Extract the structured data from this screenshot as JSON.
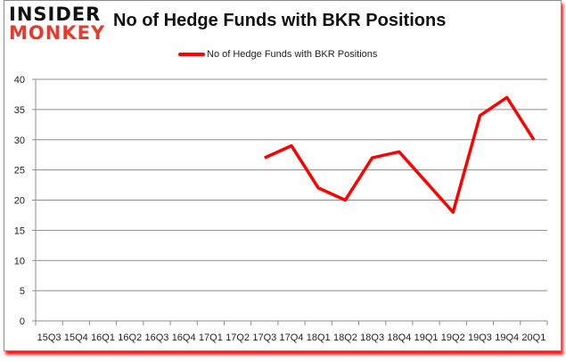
{
  "branding": {
    "line1": "INSIDER",
    "line2": "MONKEY"
  },
  "chart_data": {
    "type": "line",
    "title": "No of Hedge Funds with BKR Positions",
    "xlabel": "",
    "ylabel": "",
    "ylim": [
      0,
      40
    ],
    "yticks": [
      0,
      5,
      10,
      15,
      20,
      25,
      30,
      35,
      40
    ],
    "grid": true,
    "legend_position": "top",
    "categories": [
      "15Q3",
      "15Q4",
      "16Q1",
      "16Q2",
      "16Q3",
      "16Q4",
      "17Q1",
      "17Q2",
      "17Q3",
      "17Q4",
      "18Q1",
      "18Q2",
      "18Q3",
      "18Q4",
      "19Q1",
      "19Q2",
      "19Q3",
      "19Q4",
      "20Q1"
    ],
    "series": [
      {
        "name": "No of Hedge Funds with BKR Positions",
        "color": "#ff0000",
        "values": [
          null,
          null,
          null,
          null,
          null,
          null,
          null,
          null,
          27,
          29,
          22,
          20,
          27,
          28,
          23,
          18,
          34,
          37,
          30
        ]
      }
    ]
  }
}
